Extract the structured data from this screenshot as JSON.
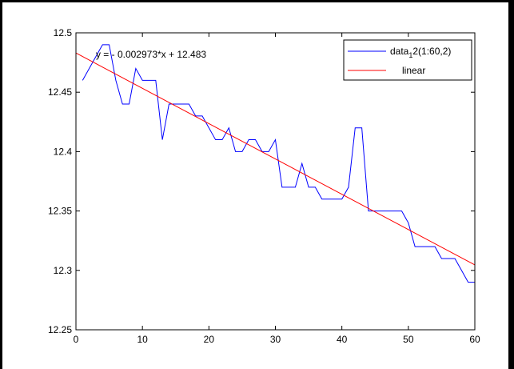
{
  "chart_data": {
    "type": "line",
    "xlim": [
      0,
      60
    ],
    "ylim": [
      12.25,
      12.5
    ],
    "xticks": [
      0,
      10,
      20,
      30,
      40,
      50,
      60
    ],
    "yticks": [
      12.25,
      12.3,
      12.35,
      12.4,
      12.45,
      12.5
    ],
    "xtick_labels": [
      "0",
      "10",
      "20",
      "30",
      "40",
      "50",
      "60"
    ],
    "ytick_labels": [
      "12.25",
      "12.3",
      "12.35",
      "12.4",
      "12.45",
      "12.5"
    ],
    "grid": false,
    "legend_position": "top-right",
    "series": [
      {
        "name": "data",
        "name_subscript": "1",
        "name_suffix": "2(1:60,2)",
        "color": "#0000ff",
        "x": [
          1,
          2,
          3,
          4,
          5,
          6,
          7,
          8,
          9,
          10,
          11,
          12,
          13,
          14,
          15,
          16,
          17,
          18,
          19,
          20,
          21,
          22,
          23,
          24,
          25,
          26,
          27,
          28,
          29,
          30,
          31,
          32,
          33,
          34,
          35,
          36,
          37,
          38,
          39,
          40,
          41,
          42,
          43,
          44,
          45,
          46,
          47,
          48,
          49,
          50,
          51,
          52,
          53,
          54,
          55,
          56,
          57,
          58,
          59,
          60
        ],
        "y": [
          12.46,
          12.47,
          12.48,
          12.49,
          12.49,
          12.46,
          12.44,
          12.44,
          12.47,
          12.46,
          12.46,
          12.46,
          12.41,
          12.44,
          12.44,
          12.44,
          12.44,
          12.43,
          12.43,
          12.42,
          12.41,
          12.41,
          12.42,
          12.4,
          12.4,
          12.41,
          12.41,
          12.4,
          12.4,
          12.41,
          12.37,
          12.37,
          12.37,
          12.39,
          12.37,
          12.37,
          12.36,
          12.36,
          12.36,
          12.36,
          12.37,
          12.42,
          12.42,
          12.35,
          12.35,
          12.35,
          12.35,
          12.35,
          12.35,
          12.34,
          12.32,
          12.32,
          12.32,
          12.32,
          12.31,
          12.31,
          12.31,
          12.3,
          12.29,
          12.29
        ]
      },
      {
        "name": "linear",
        "color": "#ff0000",
        "fit": {
          "slope": -0.002973,
          "intercept": 12.483
        },
        "x": [
          0,
          60
        ],
        "y": [
          12.483,
          12.30462
        ]
      }
    ],
    "annotation": "y = - 0.002973*x + 12.483"
  }
}
